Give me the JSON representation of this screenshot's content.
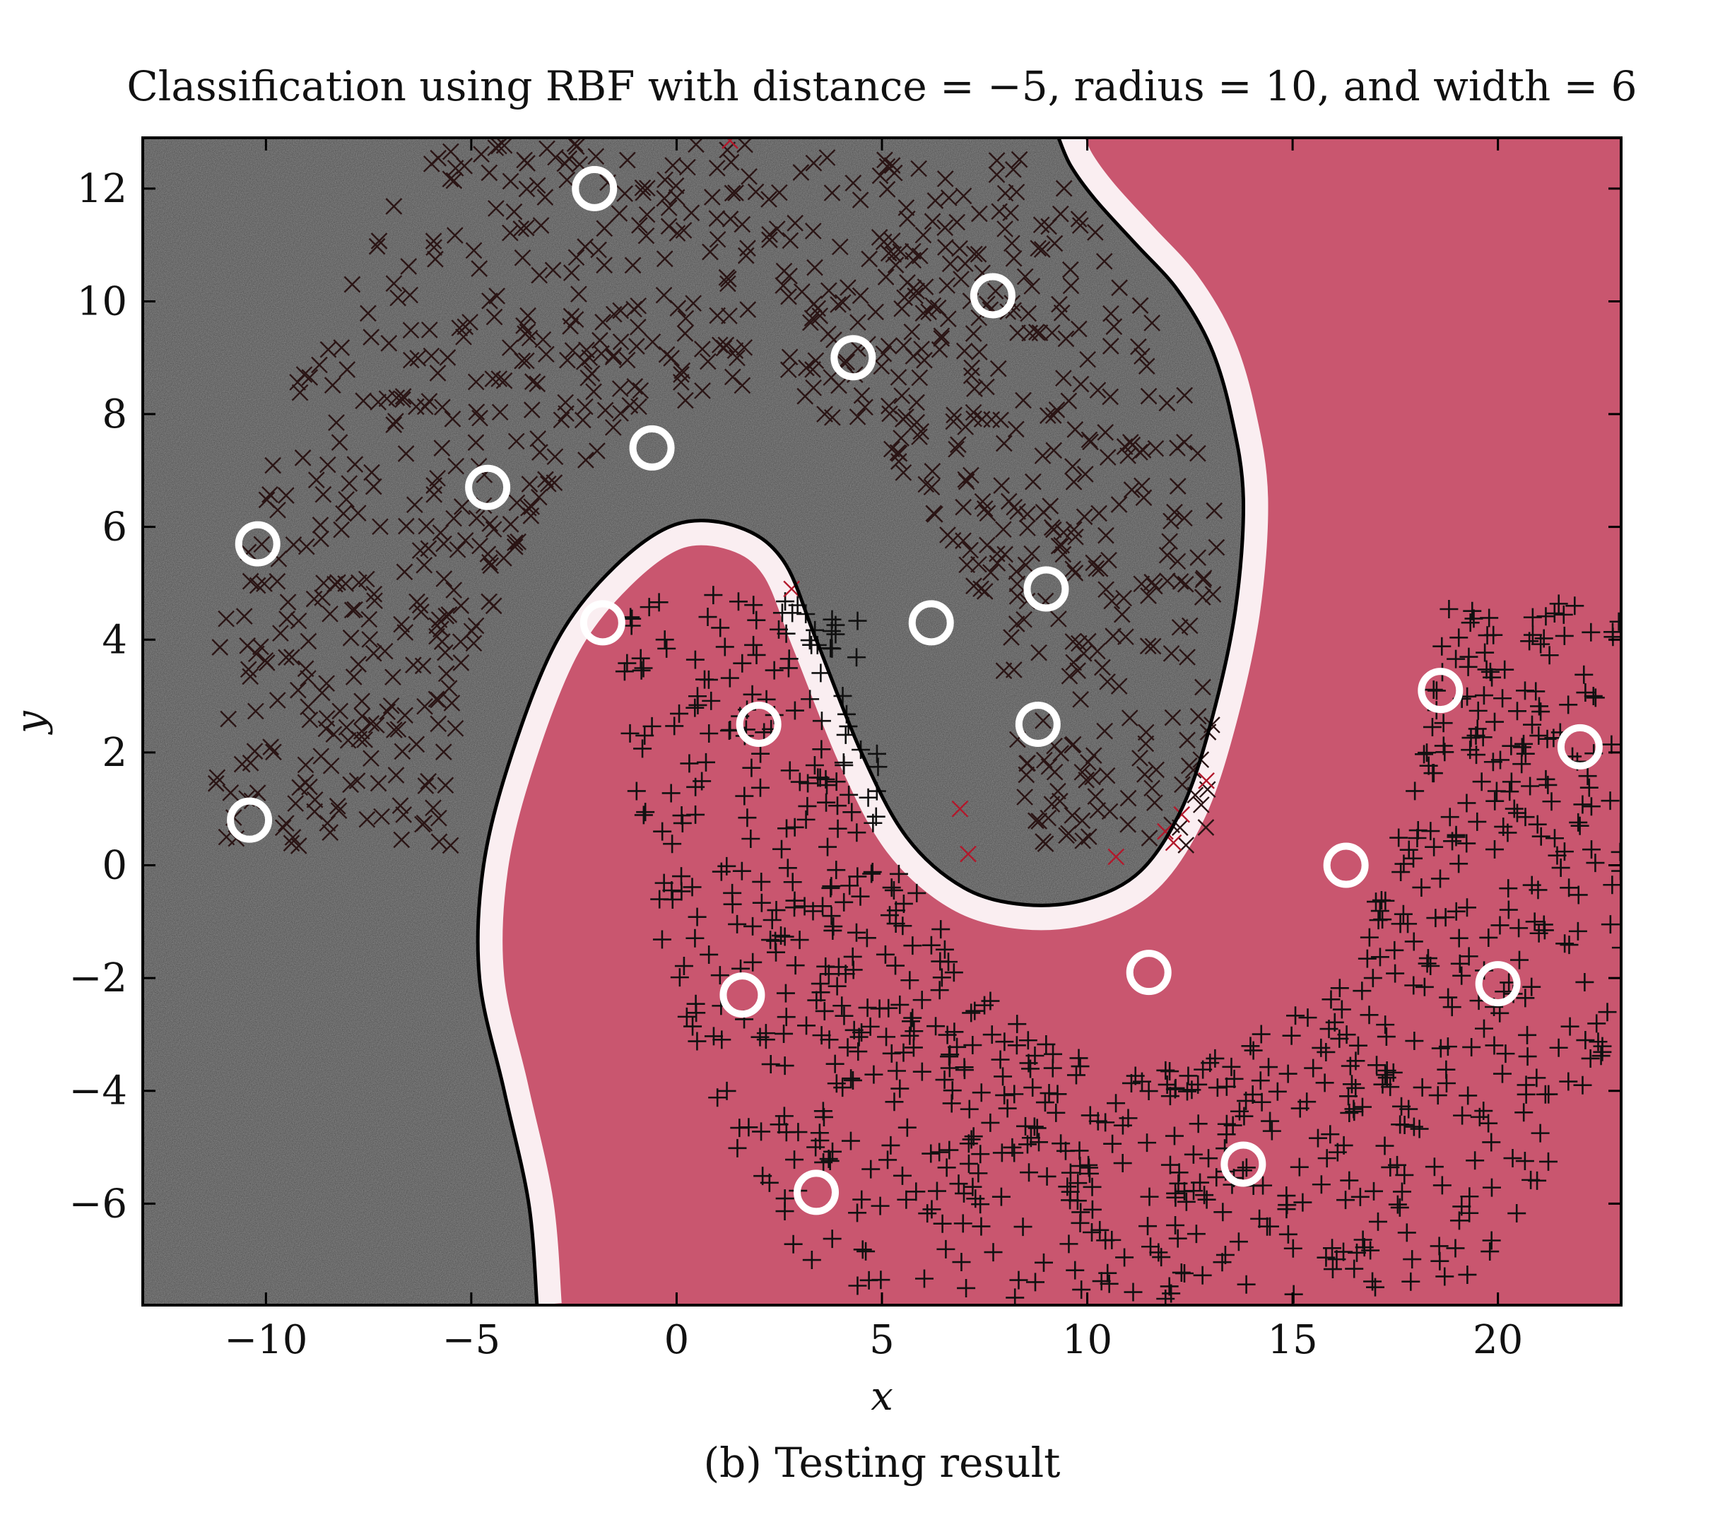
{
  "figure": {
    "caption": "(b) Testing result"
  },
  "chart_data": {
    "type": "scatter",
    "title": "Classification using RBF with distance = −5, radius = 10, and width = 6",
    "xlabel": "x",
    "ylabel": "y",
    "xlim": [
      -13,
      23
    ],
    "ylim": [
      -7.8,
      12.9
    ],
    "x_ticks": [
      -10,
      -5,
      0,
      5,
      10,
      15,
      20
    ],
    "x_tick_labels": [
      "−10",
      "−5",
      "0",
      "5",
      "10",
      "15",
      "20"
    ],
    "y_ticks": [
      -6,
      -4,
      -2,
      0,
      2,
      4,
      6,
      8,
      10,
      12
    ],
    "y_tick_labels": [
      "−6",
      "−4",
      "−2",
      "0",
      "2",
      "4",
      "6",
      "8",
      "10",
      "12"
    ],
    "grid": false,
    "legend": "none",
    "background_regions": {
      "upper_class_color": "#8c8c8c",
      "lower_class_color": "#c9566f",
      "boundary_color": "#000000"
    },
    "decision_boundary": {
      "x": [
        -3.4,
        -3.6,
        -4.2,
        -4.8,
        -4.7,
        -4.0,
        -2.9,
        -1.5,
        0.0,
        1.5,
        2.6,
        3.4,
        4.5,
        5.6,
        7.0,
        8.5,
        10.0,
        11.3,
        12.3,
        13.0,
        13.6,
        13.8,
        13.5,
        13.0,
        12.2,
        11.2,
        10.2,
        9.6,
        9.3
      ],
      "y": [
        -7.8,
        -6.0,
        -4.0,
        -2.0,
        0.0,
        2.0,
        4.0,
        5.3,
        6.05,
        6.0,
        5.4,
        4.0,
        2.0,
        0.5,
        -0.4,
        -0.7,
        -0.6,
        -0.1,
        1.0,
        2.5,
        4.5,
        6.5,
        8.0,
        9.2,
        10.2,
        11.0,
        11.8,
        12.4,
        12.9
      ]
    },
    "series": [
      {
        "marker": "x",
        "color": "#2a1414",
        "description_center_curve": "upper half-moon",
        "count": 1000
      },
      {
        "marker": "+",
        "color": "#111111",
        "count": 1000
      },
      {
        "marker": "x",
        "color": "#b2182b",
        "points": [
          [
            1.3,
            12.85
          ],
          [
            2.8,
            4.9
          ],
          [
            6.9,
            1.0
          ],
          [
            7.1,
            0.2
          ],
          [
            11.9,
            0.6
          ],
          [
            12.1,
            0.4
          ],
          [
            12.3,
            0.9
          ],
          [
            12.9,
            1.5
          ],
          [
            10.7,
            0.15
          ]
        ]
      },
      {
        "marker": "o",
        "color": "#ffffff",
        "points": [
          [
            -2.0,
            12.0
          ],
          [
            7.7,
            10.1
          ],
          [
            4.3,
            9.0
          ],
          [
            -0.6,
            7.4
          ],
          [
            -4.6,
            6.7
          ],
          [
            -10.2,
            5.7
          ],
          [
            9.0,
            4.9
          ],
          [
            6.2,
            4.3
          ],
          [
            8.8,
            2.5
          ],
          [
            -10.4,
            0.8
          ],
          [
            -1.8,
            4.3
          ],
          [
            2.0,
            2.5
          ],
          [
            18.6,
            3.1
          ],
          [
            22.0,
            2.1
          ],
          [
            16.3,
            0.0
          ],
          [
            11.5,
            -1.9
          ],
          [
            20.0,
            -2.1
          ],
          [
            1.6,
            -2.3
          ],
          [
            13.8,
            -5.3
          ],
          [
            3.4,
            -5.8
          ]
        ]
      }
    ]
  }
}
